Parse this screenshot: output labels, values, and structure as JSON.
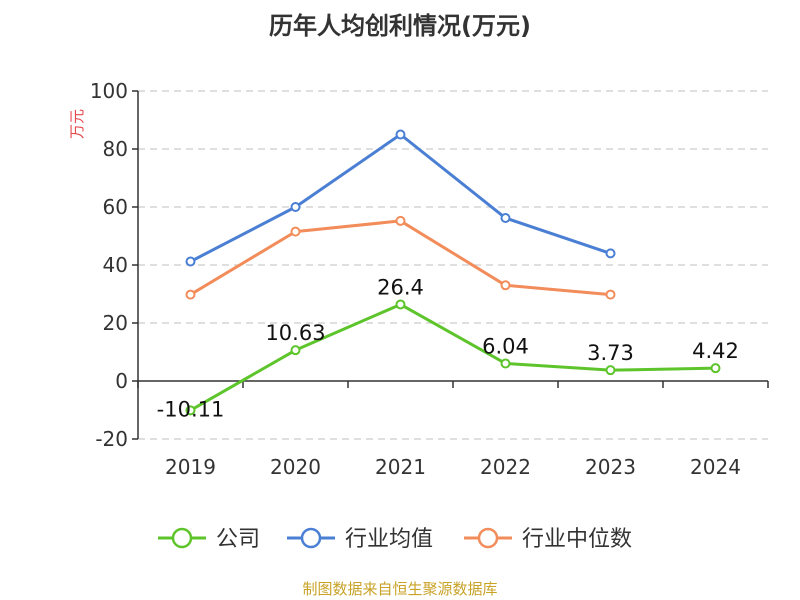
{
  "chart_data": {
    "type": "line",
    "title": "历年人均创利情况(万元)",
    "ylabel": "万元",
    "categories": [
      "2019",
      "2020",
      "2021",
      "2022",
      "2023",
      "2024"
    ],
    "ylim": [
      -20,
      100
    ],
    "yticks": [
      -20,
      0,
      20,
      40,
      60,
      80,
      100
    ],
    "grid": true,
    "legend_position": "bottom",
    "series": [
      {
        "name": "公司",
        "color": "#5dc52b",
        "values": [
          -10.11,
          10.63,
          26.4,
          6.04,
          3.73,
          4.42
        ],
        "labels": [
          "-10.11",
          "10.63",
          "26.4",
          "6.04",
          "3.73",
          "4.42"
        ]
      },
      {
        "name": "行业均值",
        "color": "#4a7fd4",
        "values": [
          41.2,
          60.0,
          85.0,
          56.2,
          44.0,
          null
        ]
      },
      {
        "name": "行业中位数",
        "color": "#f28c5a",
        "values": [
          29.8,
          51.5,
          55.2,
          33.0,
          29.8,
          null
        ]
      }
    ]
  },
  "footer": {
    "source": "制图数据来自恒生聚源数据库"
  }
}
